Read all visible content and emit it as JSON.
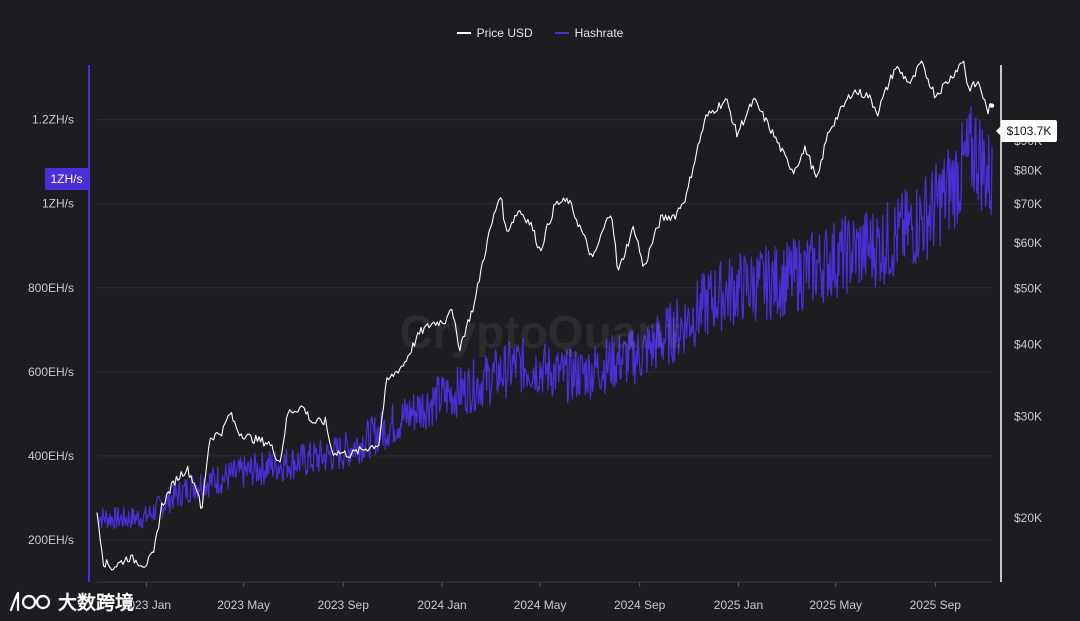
{
  "legend": [
    {
      "label": "Price USD",
      "color": "#ffffff"
    },
    {
      "label": "Hashrate",
      "color": "#4a2fd8"
    }
  ],
  "watermark": "CryptoQuant",
  "brand": {
    "logo_text": "大数跨境",
    "logo_icon": "logo-icon"
  },
  "badges": {
    "hashrate_current": "1ZH/s",
    "price_current": "$103.7K"
  },
  "chart_data": {
    "type": "line",
    "title": "",
    "xlabel": "",
    "ylabel": "",
    "x_axis": {
      "ticks": [
        "2023 Jan",
        "2023 May",
        "2023 Sep",
        "2024 Jan",
        "2024 May",
        "2024 Sep",
        "2025 Jan",
        "2025 May",
        "2025 Sep"
      ],
      "tick_dates": [
        "2023-01-01",
        "2023-05-01",
        "2023-09-01",
        "2024-01-01",
        "2024-05-01",
        "2024-09-01",
        "2025-01-01",
        "2025-05-01",
        "2025-09-01"
      ],
      "range": [
        "2022-11-01",
        "2025-11-10"
      ]
    },
    "y_left": {
      "label_ticks": [
        "200EH/s",
        "400EH/s",
        "600EH/s",
        "800EH/s",
        "1ZH/s",
        "1.2ZH/s"
      ],
      "tick_values": [
        200,
        400,
        600,
        800,
        1000,
        1200
      ],
      "range": [
        100,
        1330
      ],
      "unit": "EH/s"
    },
    "y_right": {
      "scale": "log",
      "label_ticks": [
        "$20K",
        "$30K",
        "$40K",
        "$50K",
        "$60K",
        "$70K",
        "$80K",
        "$90K"
      ],
      "tick_values": [
        20000,
        30000,
        40000,
        50000,
        60000,
        70000,
        80000,
        90000
      ],
      "range": [
        15500,
        122000
      ]
    },
    "grid": true,
    "legend_position": "top-center",
    "series": [
      {
        "name": "Price USD",
        "axis": "right",
        "color": "#ffffff",
        "points": [
          [
            "2022-11-01",
            20500
          ],
          [
            "2022-11-09",
            16800
          ],
          [
            "2022-11-20",
            16400
          ],
          [
            "2022-12-10",
            17100
          ],
          [
            "2022-12-30",
            16600
          ],
          [
            "2023-01-10",
            17300
          ],
          [
            "2023-01-20",
            21000
          ],
          [
            "2023-02-05",
            23200
          ],
          [
            "2023-02-20",
            24400
          ],
          [
            "2023-03-05",
            22400
          ],
          [
            "2023-03-10",
            20200
          ],
          [
            "2023-03-20",
            27500
          ],
          [
            "2023-04-05",
            28300
          ],
          [
            "2023-04-14",
            30400
          ],
          [
            "2023-04-25",
            28200
          ],
          [
            "2023-05-10",
            27500
          ],
          [
            "2023-06-01",
            27000
          ],
          [
            "2023-06-15",
            25000
          ],
          [
            "2023-06-25",
            30500
          ],
          [
            "2023-07-13",
            31200
          ],
          [
            "2023-07-25",
            29300
          ],
          [
            "2023-08-10",
            29400
          ],
          [
            "2023-08-18",
            26100
          ],
          [
            "2023-09-10",
            25800
          ],
          [
            "2023-09-25",
            26300
          ],
          [
            "2023-10-15",
            26900
          ],
          [
            "2023-10-25",
            34500
          ],
          [
            "2023-11-15",
            37000
          ],
          [
            "2023-12-05",
            42000
          ],
          [
            "2023-12-20",
            43500
          ],
          [
            "2024-01-05",
            44000
          ],
          [
            "2024-01-11",
            46500
          ],
          [
            "2024-01-23",
            39500
          ],
          [
            "2024-02-10",
            47000
          ],
          [
            "2024-02-28",
            62000
          ],
          [
            "2024-03-13",
            73000
          ],
          [
            "2024-03-20",
            62500
          ],
          [
            "2024-04-05",
            68500
          ],
          [
            "2024-04-20",
            64500
          ],
          [
            "2024-05-01",
            58000
          ],
          [
            "2024-05-20",
            70000
          ],
          [
            "2024-06-05",
            71000
          ],
          [
            "2024-06-25",
            61000
          ],
          [
            "2024-07-05",
            56000
          ],
          [
            "2024-07-28",
            68500
          ],
          [
            "2024-08-05",
            53000
          ],
          [
            "2024-08-25",
            64000
          ],
          [
            "2024-09-06",
            54000
          ],
          [
            "2024-09-27",
            66000
          ],
          [
            "2024-10-15",
            67000
          ],
          [
            "2024-10-29",
            72500
          ],
          [
            "2024-11-12",
            88000
          ],
          [
            "2024-11-22",
            99000
          ],
          [
            "2024-12-05",
            103000
          ],
          [
            "2024-12-17",
            106000
          ],
          [
            "2024-12-30",
            92500
          ],
          [
            "2025-01-20",
            106000
          ],
          [
            "2025-02-05",
            97000
          ],
          [
            "2025-02-28",
            84000
          ],
          [
            "2025-03-10",
            80000
          ],
          [
            "2025-03-25",
            87500
          ],
          [
            "2025-04-08",
            76500
          ],
          [
            "2025-04-22",
            93500
          ],
          [
            "2025-05-10",
            103000
          ],
          [
            "2025-05-22",
            110000
          ],
          [
            "2025-06-10",
            108000
          ],
          [
            "2025-06-22",
            101000
          ],
          [
            "2025-07-14",
            121000
          ],
          [
            "2025-08-02",
            113000
          ],
          [
            "2025-08-14",
            123000
          ],
          [
            "2025-09-01",
            108000
          ],
          [
            "2025-09-20",
            116000
          ],
          [
            "2025-10-06",
            124500
          ],
          [
            "2025-10-11",
            111000
          ],
          [
            "2025-10-25",
            113500
          ],
          [
            "2025-11-04",
            101500
          ],
          [
            "2025-11-10",
            103700
          ]
        ]
      },
      {
        "name": "Hashrate",
        "axis": "left",
        "color": "#4a2fd8",
        "points": [
          [
            "2022-11-01",
            255
          ],
          [
            "2022-12-01",
            250
          ],
          [
            "2023-01-01",
            255
          ],
          [
            "2023-02-01",
            300
          ],
          [
            "2023-03-01",
            330
          ],
          [
            "2023-04-01",
            345
          ],
          [
            "2023-05-01",
            360
          ],
          [
            "2023-06-01",
            375
          ],
          [
            "2023-07-01",
            385
          ],
          [
            "2023-08-01",
            395
          ],
          [
            "2023-09-01",
            410
          ],
          [
            "2023-10-01",
            440
          ],
          [
            "2023-11-01",
            475
          ],
          [
            "2023-12-01",
            510
          ],
          [
            "2024-01-01",
            540
          ],
          [
            "2024-02-01",
            560
          ],
          [
            "2024-03-01",
            585
          ],
          [
            "2024-04-01",
            615
          ],
          [
            "2024-05-01",
            610
          ],
          [
            "2024-06-01",
            590
          ],
          [
            "2024-07-01",
            600
          ],
          [
            "2024-08-01",
            625
          ],
          [
            "2024-09-01",
            640
          ],
          [
            "2024-10-01",
            680
          ],
          [
            "2024-11-01",
            725
          ],
          [
            "2024-12-01",
            775
          ],
          [
            "2025-01-01",
            800
          ],
          [
            "2025-02-01",
            810
          ],
          [
            "2025-03-01",
            820
          ],
          [
            "2025-04-01",
            845
          ],
          [
            "2025-05-01",
            870
          ],
          [
            "2025-06-01",
            890
          ],
          [
            "2025-07-01",
            905
          ],
          [
            "2025-08-01",
            940
          ],
          [
            "2025-09-01",
            990
          ],
          [
            "2025-10-01",
            1070
          ],
          [
            "2025-10-20",
            1130
          ],
          [
            "2025-11-10",
            1050
          ]
        ]
      }
    ]
  }
}
